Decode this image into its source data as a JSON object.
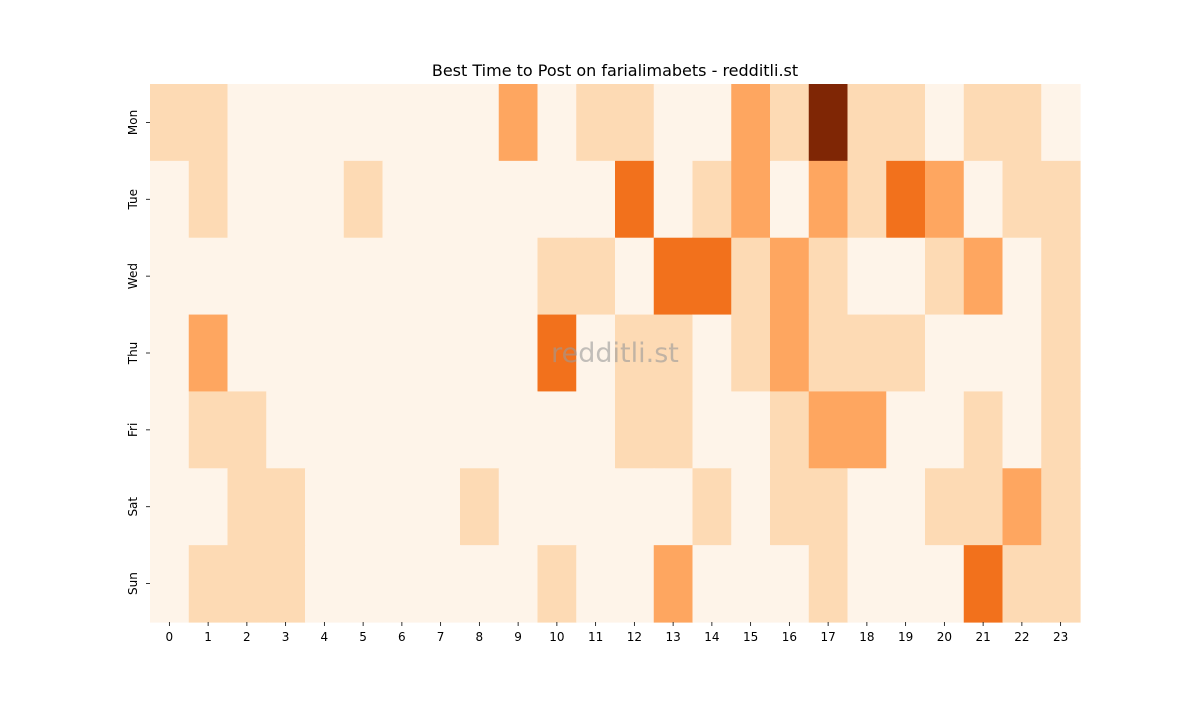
{
  "chart_data": {
    "type": "heatmap",
    "title": "Best Time to Post on farialimabets - redditli.st",
    "watermark": "redditli.st",
    "xlabel": "",
    "ylabel": "",
    "x_categories": [
      "0",
      "1",
      "2",
      "3",
      "4",
      "5",
      "6",
      "7",
      "8",
      "9",
      "10",
      "11",
      "12",
      "13",
      "14",
      "15",
      "16",
      "17",
      "18",
      "19",
      "20",
      "21",
      "22",
      "23"
    ],
    "y_categories": [
      "Mon",
      "Tue",
      "Wed",
      "Thu",
      "Fri",
      "Sat",
      "Sun"
    ],
    "colormap": "Oranges",
    "value_range": [
      0,
      5
    ],
    "colorbar": false,
    "values": [
      [
        1,
        1,
        0,
        0,
        0,
        0,
        0,
        0,
        0,
        2,
        0,
        1,
        1,
        0,
        0,
        2,
        1,
        5,
        1,
        1,
        0,
        1,
        1,
        0
      ],
      [
        0,
        1,
        0,
        0,
        0,
        1,
        0,
        0,
        0,
        0,
        0,
        0,
        3,
        0,
        1,
        2,
        0,
        2,
        1,
        3,
        2,
        0,
        1,
        1
      ],
      [
        0,
        0,
        0,
        0,
        0,
        0,
        0,
        0,
        0,
        0,
        1,
        1,
        0,
        3,
        3,
        1,
        2,
        1,
        0,
        0,
        1,
        2,
        0,
        1
      ],
      [
        0,
        2,
        0,
        0,
        0,
        0,
        0,
        0,
        0,
        0,
        3,
        0,
        1,
        1,
        0,
        1,
        2,
        1,
        1,
        1,
        0,
        0,
        0,
        1
      ],
      [
        0,
        1,
        1,
        0,
        0,
        0,
        0,
        0,
        0,
        0,
        0,
        0,
        1,
        1,
        0,
        0,
        1,
        2,
        2,
        0,
        0,
        1,
        0,
        1
      ],
      [
        0,
        0,
        1,
        1,
        0,
        0,
        0,
        0,
        1,
        0,
        0,
        0,
        0,
        0,
        1,
        0,
        1,
        1,
        0,
        0,
        1,
        1,
        2,
        1
      ],
      [
        0,
        1,
        1,
        1,
        0,
        0,
        0,
        0,
        0,
        0,
        1,
        0,
        0,
        2,
        0,
        0,
        0,
        1,
        0,
        0,
        0,
        3,
        1,
        1
      ]
    ],
    "colors": [
      "#fef4e9",
      "#fddab4",
      "#fea660",
      "#f2711c",
      "#b54a0c",
      "#7f2605"
    ]
  }
}
